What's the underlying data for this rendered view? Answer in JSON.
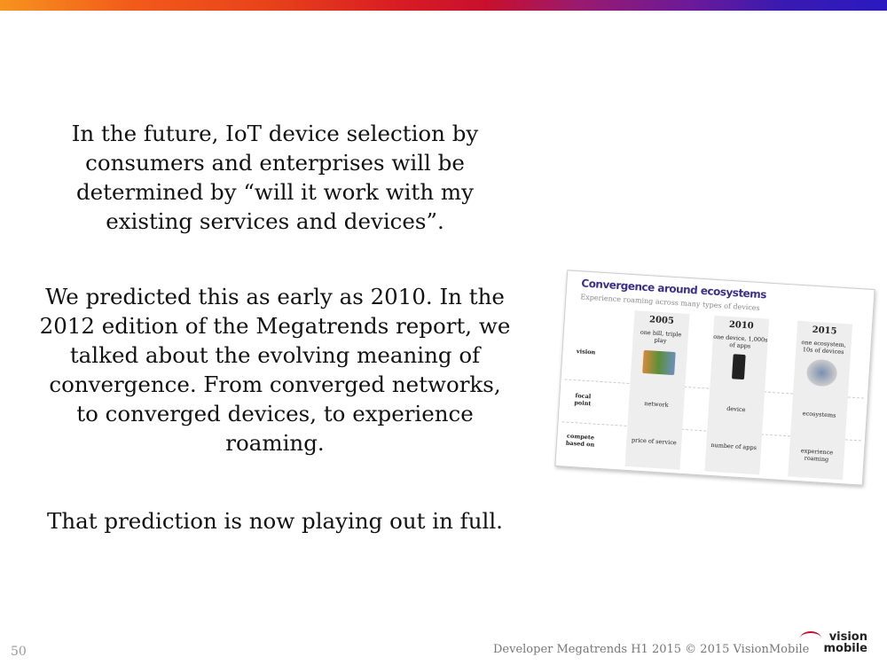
{
  "slide": {
    "paragraphs": [
      "In the future, IoT device selection by consumers and enterprises will be determined by “will it work with my existing services and devices”.",
      "We predicted this as early as 2010. In the 2012 edition of the Megatrends report, we talked about the evolving meaning of convergence. From converged networks, to converged devices, to experience roaming.",
      "That prediction is now playing out in full."
    ],
    "page_number": "50",
    "footer": "Developer Megatrends H1 2015 © 2015 VisionMobile",
    "logo_text": [
      "vision",
      "mobile"
    ]
  },
  "figure": {
    "title": "Convergence around ecosystems",
    "subtitle": "Experience roaming across many types of devices",
    "row_labels": [
      "vision",
      "focal point",
      "compete based on"
    ],
    "columns": [
      {
        "year": "2005",
        "vision": "one bill, triple play",
        "focal": "network",
        "compete": "price of service"
      },
      {
        "year": "2010",
        "vision": "one device, 1,000s of apps",
        "focal": "device",
        "compete": "number of apps"
      },
      {
        "year": "2015",
        "vision": "one ecosystem, 10s of devices",
        "focal": "ecosystems",
        "compete": "experience roaming"
      }
    ]
  }
}
